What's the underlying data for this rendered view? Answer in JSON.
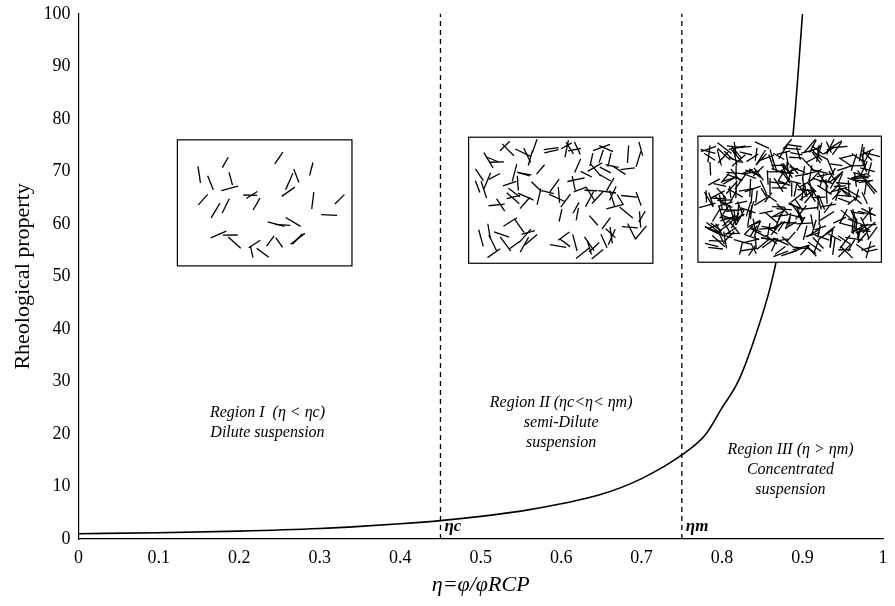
{
  "chart_data": {
    "type": "line",
    "x_label": "η=φ/φRCP",
    "y_label": "Rheological property",
    "x": [
      0,
      0.1,
      0.2,
      0.3,
      0.35,
      0.4,
      0.45,
      0.5,
      0.55,
      0.6,
      0.65,
      0.7,
      0.75,
      0.78,
      0.8,
      0.82,
      0.84,
      0.86,
      0.87,
      0.88,
      0.89,
      0.9
    ],
    "values": [
      1,
      1.2,
      1.5,
      2,
      2.4,
      2.9,
      3.5,
      4.3,
      5.3,
      6.7,
      8.5,
      11.5,
      16,
      20,
      25,
      30,
      38,
      48,
      55,
      65,
      80,
      100
    ],
    "color": "#000000",
    "line_style": "solid",
    "marker": "none",
    "xlim": [
      0,
      1
    ],
    "ylim": [
      0,
      100
    ],
    "xticks": [
      0,
      0.1,
      0.2,
      0.3,
      0.4,
      0.5,
      0.6,
      0.7,
      0.8,
      0.9,
      1
    ],
    "yticks": [
      0,
      10,
      20,
      30,
      40,
      50,
      60,
      70,
      80,
      90,
      100
    ],
    "grid": false,
    "vlines": [
      {
        "x": 0.45,
        "label": "ηc"
      },
      {
        "x": 0.75,
        "label": "ηm"
      }
    ],
    "annotations": [
      {
        "lines": [
          "Region I  (η < ηc)",
          "Dilute suspension"
        ]
      },
      {
        "lines": [
          "Region II (ηc<η< ηm)",
          "semi-Dilute",
          "suspension"
        ]
      },
      {
        "lines": [
          "Region III (η > ηm)",
          "Concentrated",
          "suspension"
        ]
      }
    ]
  }
}
